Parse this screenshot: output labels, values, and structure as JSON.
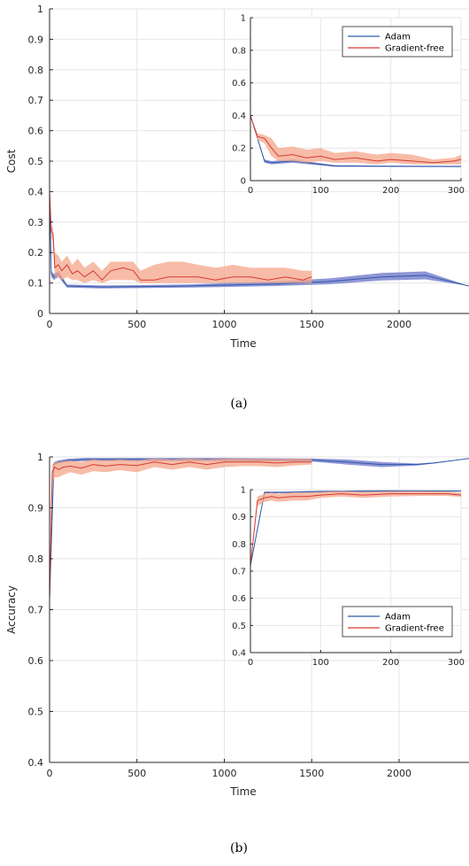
{
  "chart_data": [
    {
      "type": "line",
      "caption": "(a)",
      "xlabel": "Time",
      "ylabel": "Cost",
      "xlim": [
        0,
        2400
      ],
      "ylim": [
        0,
        1
      ],
      "grid": true,
      "xticks": [
        0,
        500,
        1000,
        1500,
        2000
      ],
      "yticks": [
        0,
        0.1,
        0.2,
        0.3,
        0.4,
        0.5,
        0.6,
        0.7,
        0.8,
        0.9,
        1
      ],
      "series": [
        {
          "name": "Adam",
          "color": "#2f5aa8",
          "band_color": "#6a73c8",
          "x": [
            0,
            10,
            25,
            50,
            100,
            300,
            500,
            800,
            1000,
            1300,
            1600,
            1900,
            2150,
            2400
          ],
          "y": [
            0.4,
            0.13,
            0.12,
            0.13,
            0.09,
            0.087,
            0.088,
            0.09,
            0.093,
            0.097,
            0.105,
            0.12,
            0.125,
            0.09
          ],
          "lower": [
            0.4,
            0.12,
            0.11,
            0.12,
            0.085,
            0.082,
            0.083,
            0.085,
            0.087,
            0.09,
            0.096,
            0.108,
            0.112,
            0.09
          ],
          "upper": [
            0.4,
            0.14,
            0.13,
            0.14,
            0.095,
            0.092,
            0.093,
            0.095,
            0.1,
            0.105,
            0.115,
            0.133,
            0.138,
            0.09
          ]
        },
        {
          "name": "Gradient-free",
          "color": "#d63a32",
          "band_color": "#f4a58a",
          "x": [
            0,
            10,
            20,
            30,
            50,
            70,
            100,
            130,
            160,
            200,
            250,
            300,
            350,
            420,
            480,
            520,
            600,
            680,
            760,
            850,
            950,
            1050,
            1150,
            1250,
            1350,
            1450,
            1500
          ],
          "y": [
            0.4,
            0.27,
            0.26,
            0.15,
            0.16,
            0.14,
            0.16,
            0.13,
            0.14,
            0.12,
            0.14,
            0.11,
            0.14,
            0.15,
            0.14,
            0.11,
            0.11,
            0.12,
            0.12,
            0.12,
            0.11,
            0.12,
            0.12,
            0.11,
            0.12,
            0.11,
            0.12
          ],
          "lower": [
            0.4,
            0.25,
            0.23,
            0.12,
            0.12,
            0.11,
            0.12,
            0.11,
            0.11,
            0.1,
            0.11,
            0.1,
            0.11,
            0.11,
            0.11,
            0.1,
            0.1,
            0.1,
            0.1,
            0.1,
            0.1,
            0.1,
            0.1,
            0.1,
            0.1,
            0.1,
            0.1
          ],
          "upper": [
            0.4,
            0.29,
            0.28,
            0.2,
            0.19,
            0.17,
            0.19,
            0.16,
            0.18,
            0.15,
            0.17,
            0.14,
            0.17,
            0.17,
            0.17,
            0.14,
            0.16,
            0.17,
            0.17,
            0.16,
            0.15,
            0.16,
            0.15,
            0.15,
            0.15,
            0.14,
            0.14
          ]
        }
      ],
      "inset": {
        "xlim": [
          0,
          300
        ],
        "ylim": [
          0,
          1
        ],
        "xticks": [
          0,
          100,
          200,
          300
        ],
        "yticks": [
          0,
          0.2,
          0.4,
          0.6,
          0.8,
          1
        ],
        "legend": "top-right",
        "series": [
          {
            "name": "Adam",
            "x": [
              0,
              20,
              30,
              60,
              120,
              200,
              300
            ],
            "y": [
              0.4,
              0.12,
              0.11,
              0.12,
              0.09,
              0.088,
              0.087
            ],
            "lower": [
              0.4,
              0.11,
              0.1,
              0.11,
              0.085,
              0.084,
              0.083
            ],
            "upper": [
              0.4,
              0.13,
              0.12,
              0.13,
              0.095,
              0.092,
              0.091
            ]
          },
          {
            "name": "Gradient-free",
            "x": [
              0,
              10,
              20,
              30,
              40,
              60,
              80,
              100,
              120,
              150,
              180,
              200,
              230,
              260,
              290,
              300
            ],
            "y": [
              0.4,
              0.27,
              0.26,
              0.2,
              0.15,
              0.16,
              0.14,
              0.15,
              0.13,
              0.14,
              0.12,
              0.13,
              0.12,
              0.11,
              0.12,
              0.13
            ],
            "lower": [
              0.4,
              0.25,
              0.23,
              0.15,
              0.12,
              0.12,
              0.11,
              0.12,
              0.11,
              0.11,
              0.1,
              0.11,
              0.1,
              0.1,
              0.1,
              0.1
            ],
            "upper": [
              0.4,
              0.29,
              0.28,
              0.26,
              0.2,
              0.21,
              0.19,
              0.2,
              0.17,
              0.18,
              0.16,
              0.17,
              0.16,
              0.13,
              0.14,
              0.16
            ]
          }
        ]
      }
    },
    {
      "type": "line",
      "caption": "(b)",
      "xlabel": "Time",
      "ylabel": "Accuracy",
      "xlim": [
        0,
        2400
      ],
      "ylim": [
        0.4,
        1
      ],
      "grid": true,
      "xticks": [
        0,
        500,
        1000,
        1500,
        2000
      ],
      "yticks": [
        0.4,
        0.5,
        0.6,
        0.7,
        0.8,
        0.9,
        1
      ],
      "series": [
        {
          "name": "Adam",
          "color": "#2f5aa8",
          "band_color": "#6a73c8",
          "x": [
            0,
            25,
            50,
            100,
            200,
            500,
            1000,
            1500,
            1700,
            1900,
            2100,
            2200,
            2400
          ],
          "y": [
            0.72,
            0.987,
            0.99,
            0.993,
            0.995,
            0.995,
            0.995,
            0.994,
            0.99,
            0.985,
            0.985,
            0.988,
            0.997
          ],
          "lower": [
            0.72,
            0.984,
            0.987,
            0.99,
            0.992,
            0.992,
            0.992,
            0.991,
            0.985,
            0.98,
            0.983,
            0.987,
            0.997
          ],
          "upper": [
            0.72,
            0.99,
            0.993,
            0.996,
            0.998,
            0.998,
            0.998,
            0.997,
            0.995,
            0.99,
            0.987,
            0.989,
            0.997
          ]
        },
        {
          "name": "Gradient-free",
          "color": "#d63a32",
          "band_color": "#f4a58a",
          "x": [
            0,
            15,
            30,
            50,
            80,
            120,
            180,
            250,
            320,
            400,
            500,
            600,
            700,
            800,
            900,
            1000,
            1100,
            1200,
            1300,
            1400,
            1500
          ],
          "y": [
            0.72,
            0.97,
            0.98,
            0.975,
            0.98,
            0.982,
            0.978,
            0.985,
            0.982,
            0.985,
            0.983,
            0.99,
            0.985,
            0.99,
            0.985,
            0.99,
            0.99,
            0.99,
            0.988,
            0.99,
            0.99
          ],
          "lower": [
            0.72,
            0.95,
            0.96,
            0.96,
            0.965,
            0.97,
            0.965,
            0.972,
            0.97,
            0.974,
            0.97,
            0.98,
            0.975,
            0.98,
            0.975,
            0.98,
            0.982,
            0.982,
            0.98,
            0.983,
            0.985
          ],
          "upper": [
            0.72,
            0.985,
            0.99,
            0.99,
            0.992,
            0.993,
            0.99,
            0.995,
            0.993,
            0.995,
            0.993,
            0.997,
            0.995,
            0.997,
            0.995,
            0.997,
            0.997,
            0.997,
            0.996,
            0.997,
            0.996
          ]
        }
      ],
      "inset": {
        "xlim": [
          0,
          300
        ],
        "ylim": [
          0.4,
          1
        ],
        "xticks": [
          0,
          100,
          200,
          300
        ],
        "yticks": [
          0.4,
          0.5,
          0.6,
          0.7,
          0.8,
          0.9,
          1
        ],
        "legend": "bottom-right",
        "series": [
          {
            "name": "Adam",
            "x": [
              0,
              20,
              50,
              100,
              200,
              300
            ],
            "y": [
              0.72,
              0.99,
              0.99,
              0.993,
              0.995,
              0.995
            ],
            "lower": [
              0.72,
              0.987,
              0.988,
              0.99,
              0.992,
              0.993
            ],
            "upper": [
              0.72,
              0.993,
              0.993,
              0.996,
              0.998,
              0.997
            ]
          },
          {
            "name": "Gradient-free",
            "x": [
              0,
              10,
              20,
              30,
              40,
              60,
              80,
              100,
              130,
              160,
              200,
              240,
              280,
              300
            ],
            "y": [
              0.72,
              0.96,
              0.97,
              0.975,
              0.97,
              0.975,
              0.975,
              0.98,
              0.985,
              0.98,
              0.985,
              0.985,
              0.985,
              0.98
            ],
            "lower": [
              0.72,
              0.94,
              0.955,
              0.96,
              0.955,
              0.96,
              0.96,
              0.97,
              0.975,
              0.97,
              0.975,
              0.977,
              0.977,
              0.973
            ],
            "upper": [
              0.72,
              0.975,
              0.985,
              0.99,
              0.985,
              0.99,
              0.99,
              0.992,
              0.995,
              0.992,
              0.994,
              0.994,
              0.993,
              0.99
            ]
          }
        ]
      }
    }
  ]
}
